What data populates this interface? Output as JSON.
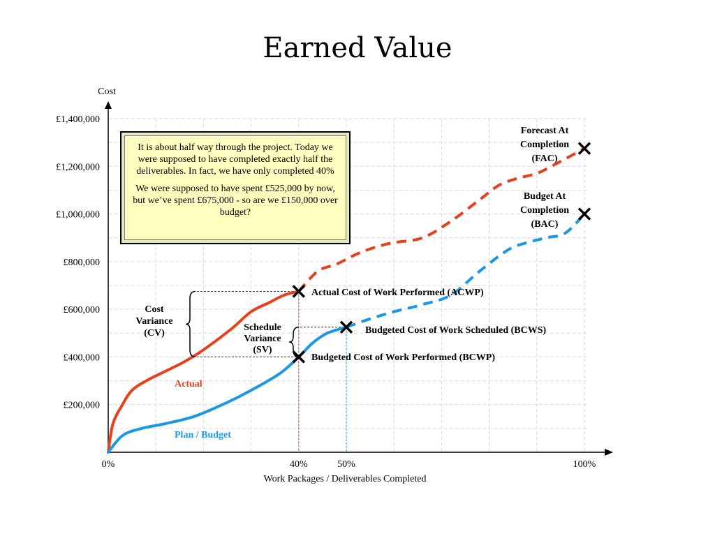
{
  "chart_data": {
    "type": "line",
    "title": "Earned Value",
    "xlabel": "Work Packages / Deliverables Completed",
    "ylabel": "Cost",
    "xlim": [
      0,
      100
    ],
    "ylim": [
      0,
      1400000
    ],
    "x_ticks": [
      {
        "value": 0,
        "label": "0%"
      },
      {
        "value": 40,
        "label": "40%"
      },
      {
        "value": 50,
        "label": "50%"
      },
      {
        "value": 100,
        "label": "100%"
      }
    ],
    "y_ticks": [
      {
        "value": 200000,
        "label": "£200,000"
      },
      {
        "value": 400000,
        "label": "£400,000"
      },
      {
        "value": 600000,
        "label": "£600,000"
      },
      {
        "value": 800000,
        "label": "£800,000"
      },
      {
        "value": 1000000,
        "label": "£1,000,000"
      },
      {
        "value": 1200000,
        "label": "£1,200,000"
      },
      {
        "value": 1400000,
        "label": "£1,400,000"
      }
    ],
    "grid": true,
    "series": [
      {
        "name": "Actual",
        "color": "#e8401c",
        "solid_until": 40,
        "points": [
          [
            0,
            0
          ],
          [
            1,
            120000
          ],
          [
            3,
            200000
          ],
          [
            5,
            260000
          ],
          [
            8,
            300000
          ],
          [
            12,
            340000
          ],
          [
            16,
            380000
          ],
          [
            20,
            430000
          ],
          [
            26,
            520000
          ],
          [
            30,
            590000
          ],
          [
            34,
            630000
          ],
          [
            37,
            660000
          ],
          [
            40,
            675000
          ],
          [
            44,
            760000
          ],
          [
            48,
            790000
          ],
          [
            52,
            830000
          ],
          [
            56,
            860000
          ],
          [
            60,
            880000
          ],
          [
            66,
            900000
          ],
          [
            72,
            970000
          ],
          [
            78,
            1060000
          ],
          [
            82,
            1120000
          ],
          [
            86,
            1150000
          ],
          [
            90,
            1170000
          ],
          [
            94,
            1210000
          ],
          [
            100,
            1275000
          ]
        ]
      },
      {
        "name": "Plan / Budget",
        "color": "#1a97e6",
        "solid_until": 50,
        "points": [
          [
            0,
            0
          ],
          [
            3,
            70000
          ],
          [
            7,
            100000
          ],
          [
            12,
            120000
          ],
          [
            18,
            150000
          ],
          [
            24,
            200000
          ],
          [
            30,
            260000
          ],
          [
            36,
            330000
          ],
          [
            40,
            400000
          ],
          [
            43,
            460000
          ],
          [
            46,
            500000
          ],
          [
            50,
            525000
          ],
          [
            55,
            560000
          ],
          [
            60,
            590000
          ],
          [
            66,
            620000
          ],
          [
            72,
            660000
          ],
          [
            78,
            760000
          ],
          [
            84,
            850000
          ],
          [
            88,
            880000
          ],
          [
            92,
            900000
          ],
          [
            96,
            920000
          ],
          [
            100,
            1000000
          ]
        ]
      }
    ],
    "markers": [
      {
        "x": 40,
        "y": 675000,
        "label": "Actual Cost of Work Performed (ACWP)"
      },
      {
        "x": 50,
        "y": 525000,
        "label": "Budgeted Cost of Work Scheduled (BCWS)"
      },
      {
        "x": 40,
        "y": 400000,
        "label": "Budgeted Cost of Work Performed (BCWP)"
      },
      {
        "x": 100,
        "y": 1275000,
        "label": [
          "Forecast At",
          "Completion",
          "(FAC)"
        ]
      },
      {
        "x": 100,
        "y": 1000000,
        "label": [
          "Budget At",
          "Completion",
          "(BAC)"
        ]
      }
    ],
    "variances": [
      {
        "label": [
          "Cost",
          "Variance",
          "(CV)"
        ],
        "from": 400000,
        "to": 675000
      },
      {
        "label": [
          "Schedule",
          "Variance",
          "(SV)"
        ],
        "from": 400000,
        "to": 525000
      }
    ],
    "series_labels": [
      {
        "text": "Actual",
        "color": "#e8401c"
      },
      {
        "text": "Plan / Budget",
        "color": "#1a97e6"
      }
    ]
  },
  "note": {
    "paragraphs": [
      "It is about half way through the project. Today we were supposed to have completed exactly half the deliverables. In fact, we have only completed 40%",
      "We were supposed to have spent £525,000 by now, but we’ve spent £675,000 - so are we £150,000 over budget?"
    ]
  }
}
